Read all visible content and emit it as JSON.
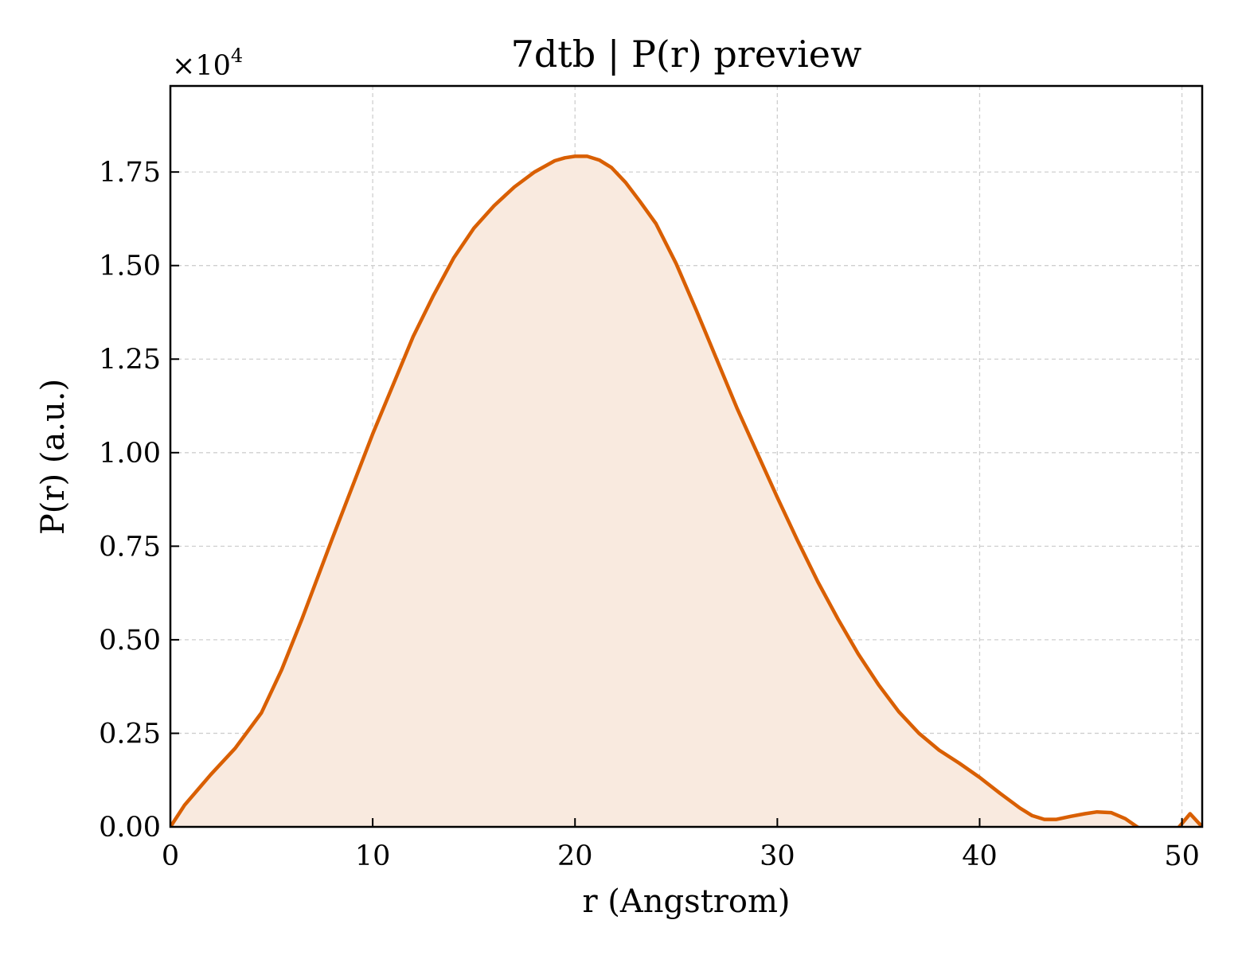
{
  "chart_data": {
    "type": "area",
    "title": "7dtb | P(r) preview",
    "xlabel": "r (Angstrom)",
    "ylabel": "P(r) (a.u.)",
    "y_multiplier_label": "×10",
    "y_multiplier_exponent": "4",
    "xlim": [
      0,
      51
    ],
    "ylim": [
      0,
      1.98
    ],
    "x_ticks": [
      0,
      10,
      20,
      30,
      40,
      50
    ],
    "x_tick_labels": [
      "0",
      "10",
      "20",
      "30",
      "40",
      "50"
    ],
    "y_ticks": [
      0,
      0.25,
      0.5,
      0.75,
      1.0,
      1.25,
      1.5,
      1.75
    ],
    "y_tick_labels": [
      "0.00",
      "0.25",
      "0.50",
      "0.75",
      "1.00",
      "1.25",
      "1.50",
      "1.75"
    ],
    "grid": true,
    "line_color": "#d95f02",
    "fill_color": "#f9eadf",
    "series": [
      {
        "x": [
          0,
          0.7,
          2,
          3.2,
          4.5,
          5.5,
          6.5,
          8,
          10,
          12,
          13,
          14,
          15,
          16,
          17,
          18,
          19,
          19.5,
          20,
          20.6,
          21.2,
          21.8,
          22.5,
          23.2,
          24,
          25,
          26,
          27,
          28,
          29,
          30,
          31,
          32,
          33,
          34,
          35,
          36,
          37,
          38,
          39,
          40,
          41,
          42,
          42.6,
          43.2,
          43.8,
          44.5,
          45.2,
          45.8,
          46.5,
          47.2,
          48,
          48.6,
          49.2,
          49.8,
          50.4,
          51
        ],
        "y": [
          0.0,
          0.058,
          0.14,
          0.21,
          0.305,
          0.42,
          0.555,
          0.77,
          1.05,
          1.31,
          1.42,
          1.52,
          1.6,
          1.66,
          1.71,
          1.75,
          1.78,
          1.788,
          1.792,
          1.792,
          1.782,
          1.762,
          1.722,
          1.672,
          1.612,
          1.505,
          1.38,
          1.25,
          1.12,
          1.0,
          0.88,
          0.765,
          0.655,
          0.555,
          0.462,
          0.38,
          0.308,
          0.25,
          0.205,
          0.17,
          0.132,
          0.09,
          0.05,
          0.03,
          0.02,
          0.02,
          0.028,
          0.035,
          0.04,
          0.038,
          0.022,
          -0.008,
          -0.012,
          -0.012,
          -0.004,
          0.035,
          0.0
        ]
      }
    ]
  }
}
